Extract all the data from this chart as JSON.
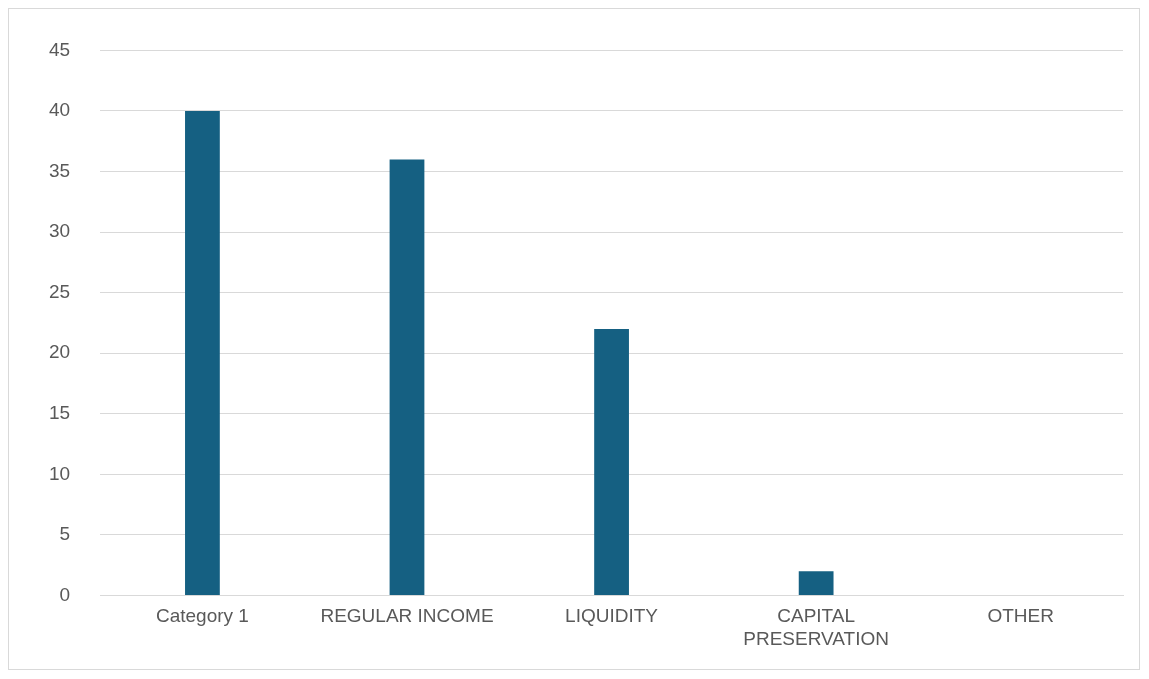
{
  "chart_data": {
    "type": "bar",
    "categories": [
      "Category 1",
      "REGULAR INCOME",
      "LIQUIDITY",
      "CAPITAL PRESERVATION",
      "OTHER"
    ],
    "values": [
      40,
      36,
      22,
      2,
      0
    ],
    "color": "#156082",
    "ylim": [
      0,
      45
    ],
    "yticks": [
      0,
      5,
      10,
      15,
      20,
      25,
      30,
      35,
      40,
      45
    ],
    "grid": "y",
    "legend": false
  }
}
